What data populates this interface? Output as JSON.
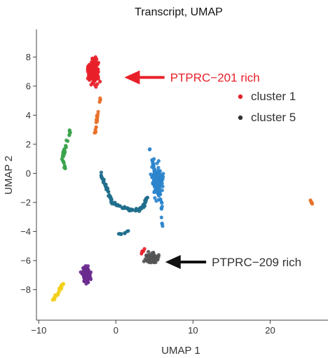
{
  "chart_data": {
    "type": "scatter",
    "title": "Transcript, UMAP",
    "xlabel": "UMAP 1",
    "ylabel": "UMAP 2",
    "xlim": [
      -10.3,
      27.5
    ],
    "ylim": [
      -10.1,
      9.9
    ],
    "xticks": [
      -10,
      0,
      10,
      20
    ],
    "xtick_labels": [
      "−10",
      "0",
      "10",
      "20"
    ],
    "yticks": [
      -8,
      -6,
      -4,
      -2,
      0,
      2,
      4,
      6,
      8
    ],
    "ytick_labels": [
      "−8",
      "−6",
      "−4",
      "−2",
      "0",
      "2",
      "4",
      "6",
      "8"
    ],
    "grid": false,
    "clusters": [
      {
        "id": "red",
        "color": "#e8202a",
        "shape": "blob",
        "n": 170,
        "center": [
          -2.9,
          7.0
        ],
        "spread": [
          1.05,
          1.05
        ],
        "tilt": -0.35
      },
      {
        "id": "orange",
        "color": "#e8702a",
        "shape": "path",
        "n": 22,
        "path": [
          [
            -2.0,
            5.2
          ],
          [
            -2.4,
            4.0
          ],
          [
            -2.7,
            2.8
          ]
        ],
        "jitter": 0.12
      },
      {
        "id": "green",
        "color": "#3aa34a",
        "shape": "path",
        "n": 32,
        "path": [
          [
            -6.0,
            2.9
          ],
          [
            -6.5,
            1.9
          ],
          [
            -7.0,
            0.9
          ],
          [
            -6.6,
            0.4
          ]
        ],
        "jitter": 0.22
      },
      {
        "id": "teal",
        "color": "#1f6e8c",
        "shape": "path",
        "n": 95,
        "path": [
          [
            -2.0,
            0.0
          ],
          [
            -1.4,
            -0.8
          ],
          [
            -0.5,
            -2.0
          ],
          [
            0.8,
            -2.3
          ],
          [
            1.8,
            -2.5
          ],
          [
            3.0,
            -2.5
          ],
          [
            3.7,
            -2.2
          ],
          [
            4.1,
            -1.5
          ]
        ],
        "jitter": 0.18
      },
      {
        "id": "blue",
        "color": "#2b84cc",
        "shape": "blob",
        "n": 110,
        "center": [
          5.4,
          -0.5
        ],
        "spread": [
          1.0,
          1.7
        ],
        "tilt": 0.0
      },
      {
        "id": "blue",
        "color": "#2b84cc",
        "shape": "path",
        "n": 25,
        "path": [
          [
            4.3,
            1.9
          ],
          [
            4.6,
            1.2
          ],
          [
            6.0,
            -2.3
          ],
          [
            6.0,
            -3.6
          ]
        ],
        "jitter": 0.2
      },
      {
        "id": "teal",
        "color": "#1f6e8c",
        "shape": "path",
        "n": 8,
        "path": [
          [
            0.3,
            -4.2
          ],
          [
            1.6,
            -4.0
          ]
        ],
        "jitter": 0.25
      },
      {
        "id": "gray",
        "color": "#555555",
        "shape": "blob",
        "n": 85,
        "center": [
          4.7,
          -5.8
        ],
        "spread": [
          1.1,
          0.45
        ],
        "tilt": 0.0
      },
      {
        "id": "purple",
        "color": "#6a2a8e",
        "shape": "blob",
        "n": 85,
        "center": [
          -3.8,
          -7.0
        ],
        "spread": [
          0.9,
          0.7
        ],
        "tilt": 0.0
      },
      {
        "id": "yellow",
        "color": "#f2cf1a",
        "shape": "path",
        "n": 22,
        "path": [
          [
            -6.8,
            -7.5
          ],
          [
            -7.5,
            -8.2
          ],
          [
            -8.2,
            -8.7
          ]
        ],
        "jitter": 0.2
      },
      {
        "id": "orange",
        "color": "#e8702a",
        "shape": "path",
        "n": 6,
        "path": [
          [
            25.2,
            -1.8
          ],
          [
            25.6,
            -2.3
          ]
        ],
        "jitter": 0.05
      },
      {
        "id": "red",
        "color": "#e8202a",
        "shape": "path",
        "n": 5,
        "path": [
          [
            3.1,
            -5.6
          ],
          [
            3.8,
            -5.2
          ]
        ],
        "jitter": 0.15
      }
    ],
    "annotations": [
      {
        "text": "PTPRC−201 rich",
        "color": "#e8202a",
        "arrow_color": "#e8202a",
        "target": [
          1.1,
          6.6
        ],
        "tail": [
          6.3,
          6.6
        ]
      },
      {
        "text": "PTPRC−209 rich",
        "color": "#333333",
        "arrow_color": "#111111",
        "target": [
          6.4,
          -6.1
        ],
        "tail": [
          11.7,
          -6.1
        ]
      }
    ],
    "legend": {
      "placement": "top-right",
      "items": [
        {
          "label": "cluster 1",
          "color": "#e8202a"
        },
        {
          "label": "cluster 5",
          "color": "#333333"
        }
      ]
    }
  }
}
